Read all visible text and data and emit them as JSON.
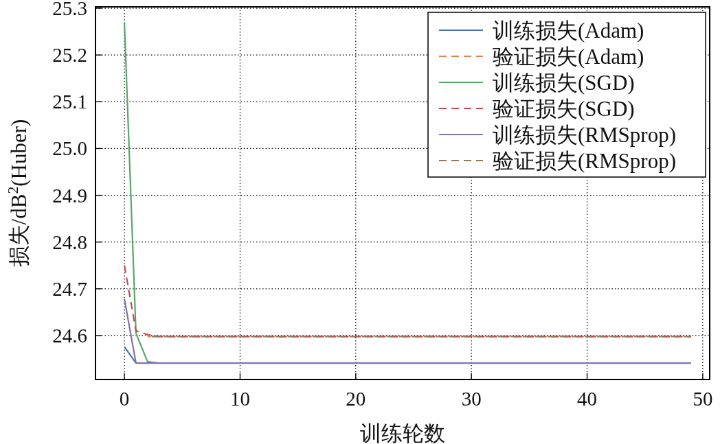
{
  "chart_data": {
    "type": "line",
    "xlabel": "训练轮数",
    "ylabel": "损失/dB$^{2}$(Huber)",
    "x": [
      0,
      1,
      2,
      3,
      4,
      5,
      6,
      7,
      8,
      9,
      10,
      11,
      12,
      13,
      14,
      15,
      16,
      17,
      18,
      19,
      20,
      21,
      22,
      23,
      24,
      25,
      26,
      27,
      28,
      29,
      30,
      31,
      32,
      33,
      34,
      35,
      36,
      37,
      38,
      39,
      40,
      41,
      42,
      43,
      44,
      45,
      46,
      47,
      48,
      49
    ],
    "series": [
      {
        "name": "训练损失(Adam)",
        "color": "#4c72b0",
        "line_style": "solid",
        "values": [
          24.576,
          24.541,
          null,
          null,
          null,
          null,
          null,
          null,
          null,
          null,
          null,
          null,
          null,
          null,
          null,
          null,
          null,
          null,
          null,
          null,
          null,
          null,
          null,
          null,
          null,
          null,
          null,
          null,
          null,
          null,
          null,
          null,
          null,
          null,
          null,
          null,
          null,
          null,
          null,
          null,
          null,
          null,
          null,
          null,
          null,
          null,
          null,
          null,
          null,
          null
        ]
      },
      {
        "name": "验证损失(Adam)",
        "color": "#dd8452",
        "line_style": "dashed",
        "values": [
          null,
          null,
          24.598,
          24.598,
          24.598,
          24.598,
          24.598,
          24.598,
          24.598,
          24.598,
          24.598,
          24.598,
          24.598,
          24.598,
          24.598,
          24.598,
          24.598,
          24.598,
          24.598,
          24.598,
          24.598,
          24.598,
          24.598,
          24.598,
          24.598,
          24.598,
          24.598,
          24.598,
          24.598,
          24.598,
          24.598,
          24.598,
          24.598,
          24.598,
          24.598,
          24.598,
          24.598,
          24.598,
          24.598,
          24.598,
          24.598,
          24.598,
          24.598,
          24.598,
          24.598,
          24.598,
          24.598,
          24.598,
          24.598,
          24.598
        ]
      },
      {
        "name": "训练损失(SGD)",
        "color": "#55a868",
        "line_style": "solid",
        "values": [
          25.27,
          24.605,
          24.544,
          24.541,
          null,
          null,
          null,
          null,
          null,
          null,
          null,
          null,
          null,
          null,
          null,
          null,
          null,
          null,
          null,
          null,
          null,
          null,
          null,
          null,
          null,
          null,
          null,
          null,
          null,
          null,
          null,
          null,
          null,
          null,
          null,
          null,
          null,
          null,
          null,
          null,
          null,
          null,
          null,
          null,
          null,
          null,
          null,
          null,
          null,
          null
        ]
      },
      {
        "name": "验证损失(SGD)",
        "color": "#c44e52",
        "line_style": "dashed",
        "values": [
          24.75,
          24.61,
          24.602,
          24.598,
          24.598,
          24.598,
          24.598,
          24.598,
          24.598,
          24.598,
          24.598,
          24.598,
          24.598,
          24.598,
          24.598,
          24.598,
          24.598,
          24.598,
          24.598,
          24.598,
          24.598,
          24.598,
          24.598,
          24.598,
          24.598,
          24.598,
          24.598,
          24.598,
          24.598,
          24.598,
          24.598,
          24.598,
          24.598,
          24.598,
          24.598,
          24.598,
          24.598,
          24.598,
          24.598,
          24.598,
          24.598,
          24.598,
          24.598,
          24.598,
          24.598,
          24.598,
          24.598,
          24.598,
          24.598,
          24.598
        ]
      },
      {
        "name": "训练损失(RMSprop)",
        "color": "#8172b3",
        "line_style": "solid",
        "values": [
          24.678,
          24.541,
          24.541,
          24.541,
          24.541,
          24.541,
          24.541,
          24.541,
          24.541,
          24.541,
          24.541,
          24.541,
          24.541,
          24.541,
          24.541,
          24.541,
          24.541,
          24.541,
          24.541,
          24.541,
          24.541,
          24.541,
          24.541,
          24.541,
          24.541,
          24.541,
          24.541,
          24.541,
          24.541,
          24.541,
          24.541,
          24.541,
          24.541,
          24.541,
          24.541,
          24.541,
          24.541,
          24.541,
          24.541,
          24.541,
          24.541,
          24.541,
          24.541,
          24.541,
          24.541,
          24.541,
          24.541,
          24.541,
          24.541,
          24.541
        ]
      },
      {
        "name": "验证损失(RMSprop)",
        "color": "#937860",
        "line_style": "dashed",
        "values": [
          null,
          null,
          24.598,
          24.598,
          24.598,
          24.598,
          24.598,
          24.598,
          24.598,
          24.598,
          24.598,
          24.598,
          24.598,
          24.598,
          24.598,
          24.598,
          24.598,
          24.598,
          24.598,
          24.598,
          24.598,
          24.598,
          24.598,
          24.598,
          24.598,
          24.598,
          24.598,
          24.598,
          24.598,
          24.598,
          24.598,
          24.598,
          24.598,
          24.598,
          24.598,
          24.598,
          24.598,
          24.598,
          24.598,
          24.598,
          24.598,
          24.598,
          24.598,
          24.598,
          24.598,
          24.598,
          24.598,
          24.598,
          24.598,
          24.598
        ]
      }
    ],
    "xlim": [
      -2.5,
      50.6
    ],
    "xticks": [
      0,
      10,
      20,
      30,
      40,
      50
    ],
    "ylim": [
      24.506,
      25.303
    ],
    "yticks": [
      24.6,
      24.7,
      24.8,
      24.9,
      {
        "value": 25.0,
        "label": "25.0"
      },
      25.1,
      25.2,
      25.3
    ],
    "grid": true,
    "legend": "top right"
  }
}
